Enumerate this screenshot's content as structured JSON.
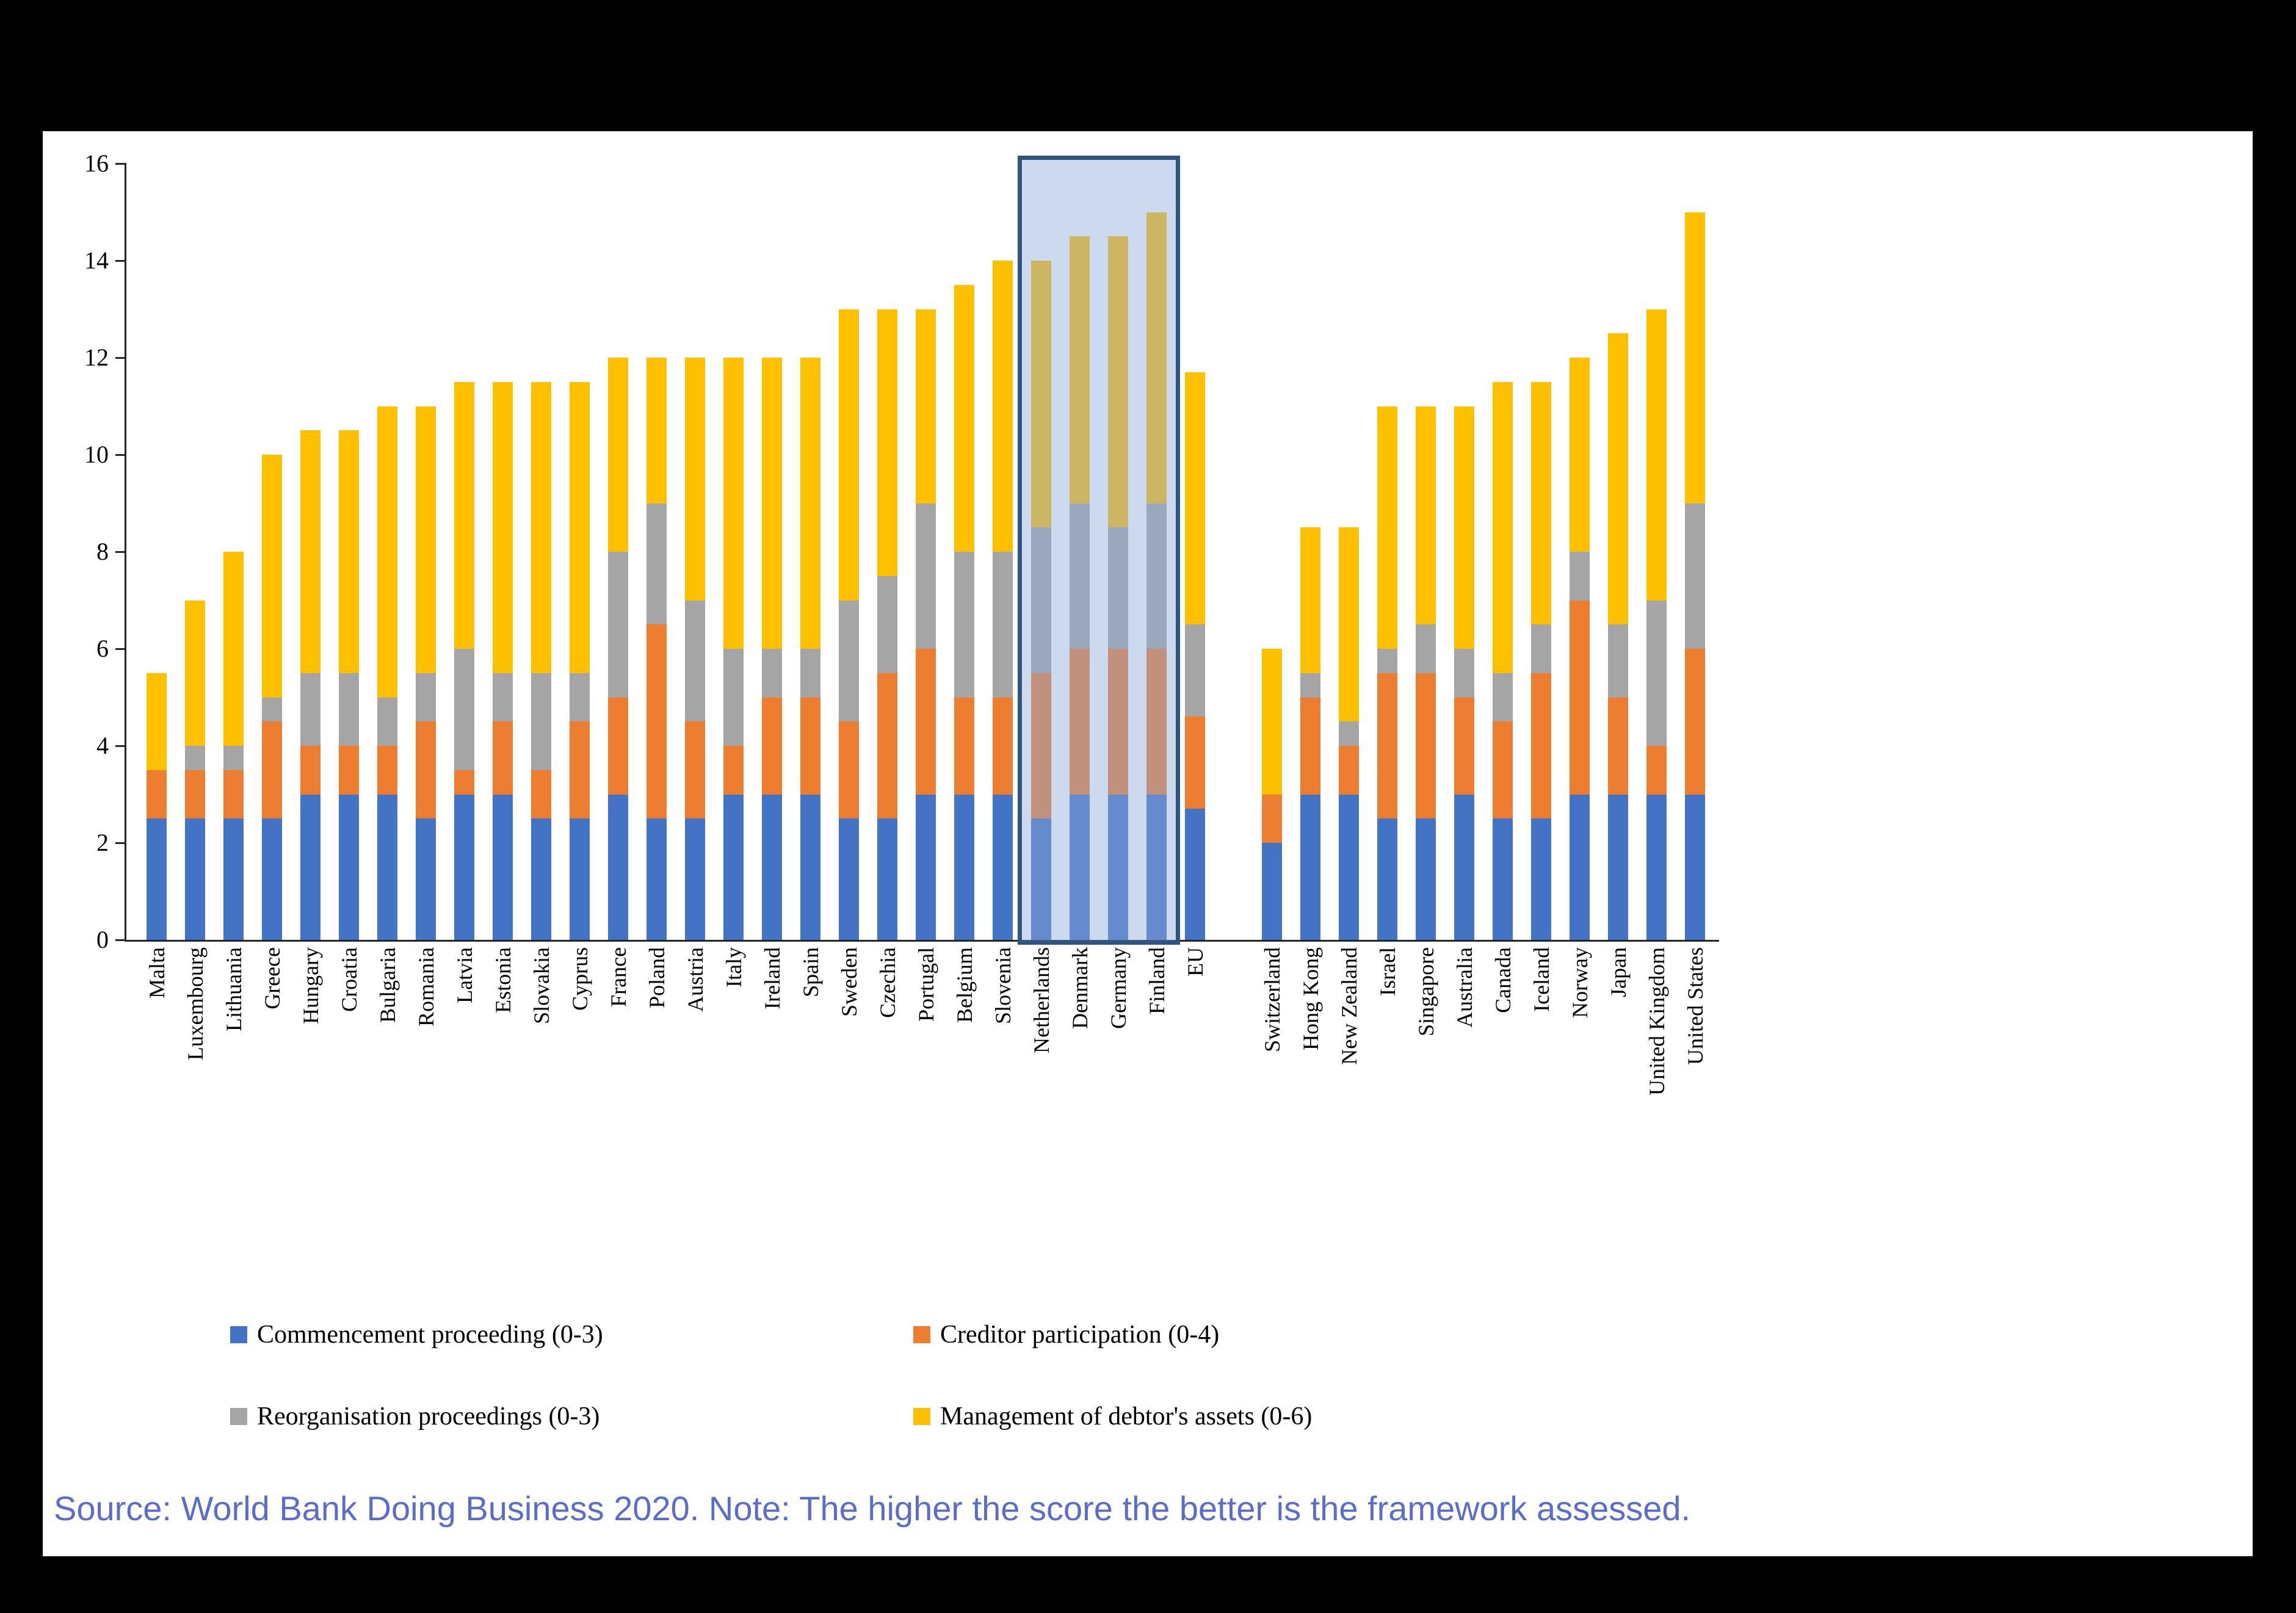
{
  "page": {
    "background_color": "#000000",
    "panel_color": "#ffffff"
  },
  "chart_data": {
    "type": "bar",
    "stacked": true,
    "title": "",
    "xlabel": "",
    "ylabel": "",
    "ylim": [
      0,
      16
    ],
    "yticks": [
      0,
      2,
      4,
      6,
      8,
      10,
      12,
      14,
      16
    ],
    "grid": false,
    "legend_position": "bottom",
    "gap_after_category": "EU",
    "categories": [
      "Malta",
      "Luxembourg",
      "Lithuania",
      "Greece",
      "Hungary",
      "Croatia",
      "Bulgaria",
      "Romania",
      "Latvia",
      "Estonia",
      "Slovakia",
      "Cyprus",
      "France",
      "Poland",
      "Austria",
      "Italy",
      "Ireland",
      "Spain",
      "Sweden",
      "Czechia",
      "Portugal",
      "Belgium",
      "Slovenia",
      "Netherlands",
      "Denmark",
      "Germany",
      "Finland",
      "EU",
      "Switzerland",
      "Hong Kong",
      "New Zealand",
      "Israel",
      "Singapore",
      "Australia",
      "Canada",
      "Iceland",
      "Norway",
      "Japan",
      "United Kingdom",
      "United States"
    ],
    "series": [
      {
        "name": "Commencement proceeding (0-3)",
        "color": "#4472C4",
        "values": [
          2.5,
          2.5,
          2.5,
          2.5,
          3,
          3,
          3,
          2.5,
          3,
          3,
          2.5,
          2.5,
          3,
          2.5,
          2.5,
          3,
          3,
          3,
          2.5,
          2.5,
          3,
          3,
          3,
          2.5,
          3,
          3,
          3,
          2.7,
          2,
          3,
          3,
          2.5,
          2.5,
          3,
          2.5,
          2.5,
          3,
          3,
          3,
          3
        ]
      },
      {
        "name": "Creditor participation (0-4)",
        "color": "#ED7D31",
        "values": [
          1,
          1,
          1,
          2,
          1,
          1,
          1,
          2,
          0.5,
          1.5,
          1,
          2,
          2,
          4,
          2,
          1,
          2,
          2,
          2,
          3,
          3,
          2,
          2,
          3,
          3,
          3,
          3,
          1.9,
          1,
          2,
          1,
          3,
          3,
          2,
          2,
          3,
          4,
          2,
          1,
          3
        ]
      },
      {
        "name": "Reorganisation proceedings (0-3)",
        "color": "#A5A5A5",
        "values": [
          0,
          0.5,
          0.5,
          0.5,
          1.5,
          1.5,
          1,
          1,
          2.5,
          1,
          2,
          1,
          3,
          2.5,
          2.5,
          2,
          1,
          1,
          2.5,
          2,
          3,
          3,
          3,
          3,
          3,
          2.5,
          3,
          1.9,
          0,
          0.5,
          0.5,
          0.5,
          1,
          1,
          1,
          1,
          1,
          1.5,
          3,
          3
        ]
      },
      {
        "name": "Management of debtor's assets (0-6)",
        "color": "#FFC000",
        "values": [
          2,
          3,
          4,
          5,
          5,
          5,
          6,
          5.5,
          5.5,
          6,
          6,
          6,
          4,
          3,
          5,
          6,
          6,
          6,
          6,
          5.5,
          4,
          5.5,
          6,
          5.5,
          5.5,
          6,
          6,
          5.2,
          3,
          3,
          4,
          5,
          4.5,
          5,
          6,
          5,
          4,
          6,
          6,
          6
        ]
      }
    ],
    "highlight": {
      "from_category": "Netherlands",
      "to_category": "Finland",
      "border_color": "#2F5480",
      "fill_color": "rgba(143,170,220,0.45)"
    }
  },
  "source_note": {
    "text": "Source: World Bank Doing Business 2020.  Note: The higher the score the better is the framework assessed.",
    "color": "#5B6DC8"
  }
}
